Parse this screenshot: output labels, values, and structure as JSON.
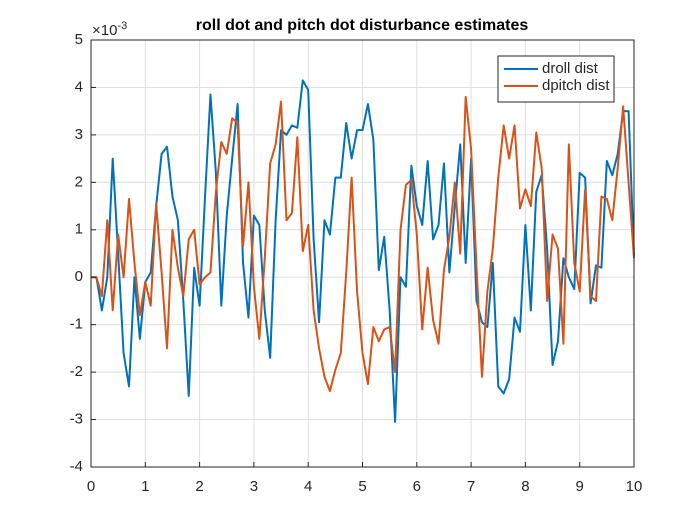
{
  "chart_data": {
    "type": "line",
    "title": "roll dot and pitch dot disturbance estimates",
    "y_exponent": {
      "base": "×10",
      "power": "-3"
    },
    "x": [
      0,
      0.1,
      0.2,
      0.3,
      0.4,
      0.5,
      0.6,
      0.7,
      0.8,
      0.9,
      1,
      1.1,
      1.2,
      1.3,
      1.4,
      1.5,
      1.6,
      1.7,
      1.8,
      1.9,
      2,
      2.1,
      2.2,
      2.3,
      2.4,
      2.5,
      2.6,
      2.7,
      2.8,
      2.9,
      3,
      3.1,
      3.2,
      3.3,
      3.4,
      3.5,
      3.6,
      3.7,
      3.8,
      3.9,
      4,
      4.1,
      4.2,
      4.3,
      4.4,
      4.5,
      4.6,
      4.7,
      4.8,
      4.9,
      5,
      5.1,
      5.2,
      5.3,
      5.4,
      5.5,
      5.6,
      5.7,
      5.8,
      5.9,
      6,
      6.1,
      6.2,
      6.3,
      6.4,
      6.5,
      6.6,
      6.7,
      6.8,
      6.9,
      7,
      7.1,
      7.2,
      7.3,
      7.4,
      7.5,
      7.6,
      7.7,
      7.8,
      7.9,
      8,
      8.1,
      8.2,
      8.3,
      8.4,
      8.5,
      8.6,
      8.7,
      8.8,
      8.9,
      9,
      9.1,
      9.2,
      9.3,
      9.4,
      9.5,
      9.6,
      9.7,
      9.8,
      9.9,
      10
    ],
    "series": [
      {
        "name": "droll dist",
        "color": "#0072bd",
        "values": [
          0,
          0,
          -0.7,
          0,
          2.5,
          0.5,
          -1.6,
          -2.3,
          0,
          -1.3,
          -0.1,
          0.1,
          1.5,
          2.6,
          2.75,
          1.7,
          1.2,
          -0.5,
          -2.5,
          0.2,
          -0.6,
          1.7,
          3.85,
          2.2,
          -0.6,
          1.3,
          2.5,
          3.65,
          0.3,
          -0.85,
          1.3,
          1.1,
          -0.7,
          -1.7,
          1.2,
          3.1,
          3.0,
          3.2,
          3.15,
          4.15,
          3.95,
          0.8,
          -0.95,
          1.2,
          0.9,
          2.1,
          2.1,
          3.25,
          2.5,
          3.1,
          3.1,
          3.65,
          2.9,
          0.15,
          0.85,
          -0.7,
          -3.05,
          0,
          -0.2,
          2.35,
          1.5,
          1.1,
          2.45,
          0.8,
          1.1,
          2.4,
          0.1,
          1.5,
          2.8,
          0.3,
          2.5,
          -0.5,
          -0.95,
          -1.05,
          0.3,
          -2.3,
          -2.45,
          -2.15,
          -0.85,
          -1.15,
          1.1,
          -0.7,
          1.8,
          2.15,
          0.6,
          -1.85,
          -1.35,
          0.4,
          0,
          -0.25,
          2.2,
          2.1,
          -0.55,
          0.25,
          0.2,
          2.45,
          2.15,
          2.6,
          3.5,
          3.5,
          0.45
        ]
      },
      {
        "name": "dpitch dist",
        "color": "#d95319",
        "values": [
          0,
          0,
          -0.4,
          1.2,
          -0.7,
          0.9,
          0,
          1.65,
          0.3,
          -0.8,
          -0.1,
          -0.6,
          1.55,
          0.1,
          -1.5,
          1.0,
          0.2,
          -0.4,
          0.8,
          1.0,
          -0.15,
          0,
          0.1,
          1.8,
          2.85,
          2.6,
          3.35,
          3.25,
          0.65,
          2.0,
          -0.2,
          -1.3,
          0.4,
          2.4,
          2.8,
          3.7,
          1.2,
          1.35,
          2.95,
          0.55,
          1.1,
          -0.7,
          -1.5,
          -2.1,
          -2.4,
          -1.95,
          -1.6,
          0.1,
          2.1,
          -0.3,
          -1.6,
          -2.25,
          -1.05,
          -1.35,
          -1.1,
          -1.05,
          -2.0,
          1.0,
          1.95,
          2.05,
          0.9,
          -1.1,
          0.2,
          -0.9,
          -1.4,
          0.15,
          0.85,
          2.0,
          0.5,
          3.8,
          2.7,
          0.2,
          -2.1,
          -0.3,
          0.6,
          2.1,
          3.2,
          2.5,
          3.2,
          1.45,
          1.85,
          1.5,
          3.05,
          2.3,
          -0.5,
          0.9,
          0.6,
          -1.4,
          2.8,
          0.3,
          -0.3,
          1.85,
          -0.4,
          -0.5,
          1.7,
          1.65,
          1.2,
          2.3,
          3.6,
          2.0,
          0.4
        ]
      }
    ],
    "xlim": [
      0,
      10
    ],
    "xticks": [
      0,
      1,
      2,
      3,
      4,
      5,
      6,
      7,
      8,
      9,
      10
    ],
    "ylim": [
      -4,
      5
    ],
    "yticks": [
      -4,
      -3,
      -2,
      -1,
      0,
      1,
      2,
      3,
      4,
      5
    ],
    "grid": true,
    "legend": "northeast"
  }
}
